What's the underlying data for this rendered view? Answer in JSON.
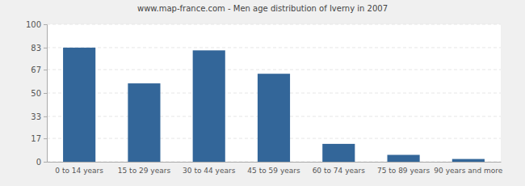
{
  "chart_data": {
    "type": "bar",
    "title": "www.map-france.com - Men age distribution of Iverny in 2007",
    "categories": [
      "0 to 14 years",
      "15 to 29 years",
      "30 to 44 years",
      "45 to 59 years",
      "60 to 74 years",
      "75 to 89 years",
      "90 years and more"
    ],
    "values": [
      83,
      57,
      81,
      64,
      13,
      5,
      2
    ],
    "color": "#336699",
    "ylim": [
      0,
      100
    ],
    "yticks": [
      0,
      17,
      33,
      50,
      67,
      83,
      100
    ],
    "grid": true
  }
}
